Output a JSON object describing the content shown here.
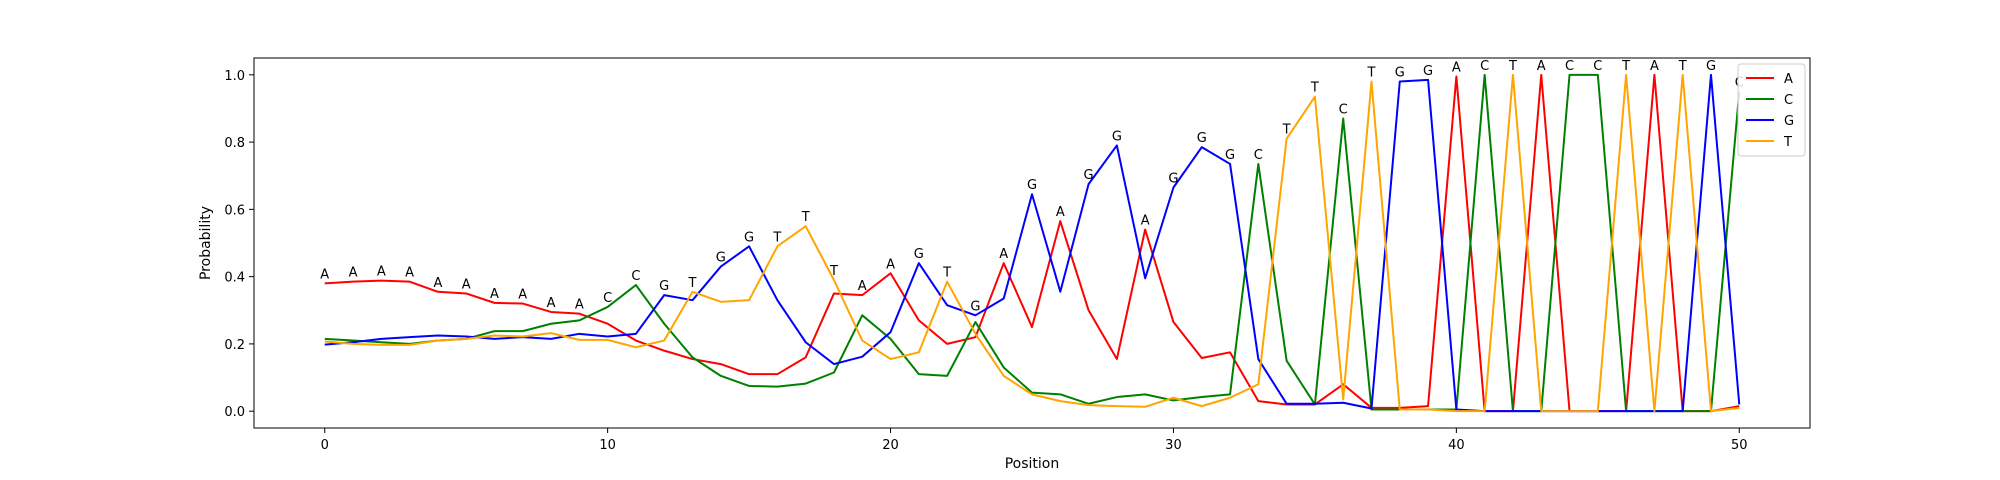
{
  "chart_data": {
    "type": "line",
    "xlabel": "Position",
    "ylabel": "Probability",
    "xlim": [
      -2.5,
      52.5
    ],
    "ylim": [
      -0.05,
      1.05
    ],
    "xticks": [
      0,
      10,
      20,
      30,
      40,
      50
    ],
    "yticks": [
      0.0,
      0.2,
      0.4,
      0.6,
      0.8,
      1.0
    ],
    "ytick_labels": [
      "0.0",
      "0.2",
      "0.4",
      "0.6",
      "0.8",
      "1.0"
    ],
    "grid": false,
    "legend_position": "top-right",
    "x": [
      0,
      1,
      2,
      3,
      4,
      5,
      6,
      7,
      8,
      9,
      10,
      11,
      12,
      13,
      14,
      15,
      16,
      17,
      18,
      19,
      20,
      21,
      22,
      23,
      24,
      25,
      26,
      27,
      28,
      29,
      30,
      31,
      32,
      33,
      34,
      35,
      36,
      37,
      38,
      39,
      40,
      41,
      42,
      43,
      44,
      45,
      46,
      47,
      48,
      49,
      50
    ],
    "series": [
      {
        "name": "A",
        "color": "#ff0000",
        "values": [
          0.38,
          0.385,
          0.388,
          0.385,
          0.355,
          0.35,
          0.322,
          0.32,
          0.295,
          0.29,
          0.26,
          0.21,
          0.18,
          0.155,
          0.14,
          0.11,
          0.11,
          0.16,
          0.35,
          0.345,
          0.41,
          0.27,
          0.2,
          0.22,
          0.44,
          0.25,
          0.565,
          0.3,
          0.155,
          0.54,
          0.265,
          0.158,
          0.175,
          0.03,
          0.02,
          0.02,
          0.08,
          0.01,
          0.01,
          0.015,
          0.995,
          0.0,
          0.0,
          1.0,
          0.0,
          0.0,
          0.0,
          1.0,
          0.0,
          0.0,
          0.015
        ]
      },
      {
        "name": "C",
        "color": "#008000",
        "values": [
          0.215,
          0.21,
          0.205,
          0.2,
          0.21,
          0.215,
          0.238,
          0.238,
          0.26,
          0.27,
          0.31,
          0.375,
          0.26,
          0.16,
          0.105,
          0.075,
          0.073,
          0.082,
          0.115,
          0.285,
          0.215,
          0.11,
          0.105,
          0.265,
          0.13,
          0.055,
          0.05,
          0.022,
          0.042,
          0.05,
          0.032,
          0.042,
          0.05,
          0.735,
          0.15,
          0.02,
          0.87,
          0.005,
          0.005,
          0.005,
          0.005,
          1.0,
          0.0,
          0.0,
          1.0,
          1.0,
          0.0,
          0.0,
          0.0,
          0.0,
          0.95
        ]
      },
      {
        "name": "G",
        "color": "#0000ff",
        "values": [
          0.198,
          0.205,
          0.215,
          0.22,
          0.225,
          0.222,
          0.215,
          0.22,
          0.215,
          0.23,
          0.222,
          0.23,
          0.345,
          0.33,
          0.43,
          0.49,
          0.33,
          0.205,
          0.14,
          0.162,
          0.235,
          0.44,
          0.315,
          0.285,
          0.335,
          0.645,
          0.355,
          0.675,
          0.79,
          0.395,
          0.665,
          0.785,
          0.735,
          0.155,
          0.022,
          0.022,
          0.025,
          0.008,
          0.98,
          0.985,
          0.005,
          0.0,
          0.0,
          0.0,
          0.0,
          0.0,
          0.0,
          0.0,
          0.0,
          1.0,
          0.02
        ]
      },
      {
        "name": "T",
        "color": "#ffa500",
        "values": [
          0.207,
          0.2,
          0.197,
          0.197,
          0.21,
          0.215,
          0.225,
          0.222,
          0.232,
          0.212,
          0.212,
          0.19,
          0.21,
          0.355,
          0.325,
          0.33,
          0.49,
          0.55,
          0.39,
          0.21,
          0.155,
          0.175,
          0.385,
          0.23,
          0.105,
          0.05,
          0.03,
          0.018,
          0.015,
          0.013,
          0.04,
          0.015,
          0.04,
          0.08,
          0.81,
          0.935,
          0.035,
          0.98,
          0.005,
          0.005,
          0.0,
          0.0,
          1.0,
          0.0,
          0.0,
          0.0,
          1.0,
          0.0,
          1.0,
          0.0,
          0.01
        ]
      }
    ],
    "peak_labels": [
      "A",
      "A",
      "A",
      "A",
      "A",
      "A",
      "A",
      "A",
      "A",
      "A",
      "C",
      "C",
      "G",
      "T",
      "G",
      "G",
      "T",
      "T",
      "T",
      "A",
      "A",
      "G",
      "T",
      "G",
      "A",
      "G",
      "A",
      "G",
      "G",
      "A",
      "G",
      "G",
      "G",
      "C",
      "T",
      "T",
      "C",
      "T",
      "G",
      "G",
      "A",
      "C",
      "T",
      "A",
      "C",
      "C",
      "T",
      "A",
      "T",
      "G",
      "C"
    ]
  }
}
